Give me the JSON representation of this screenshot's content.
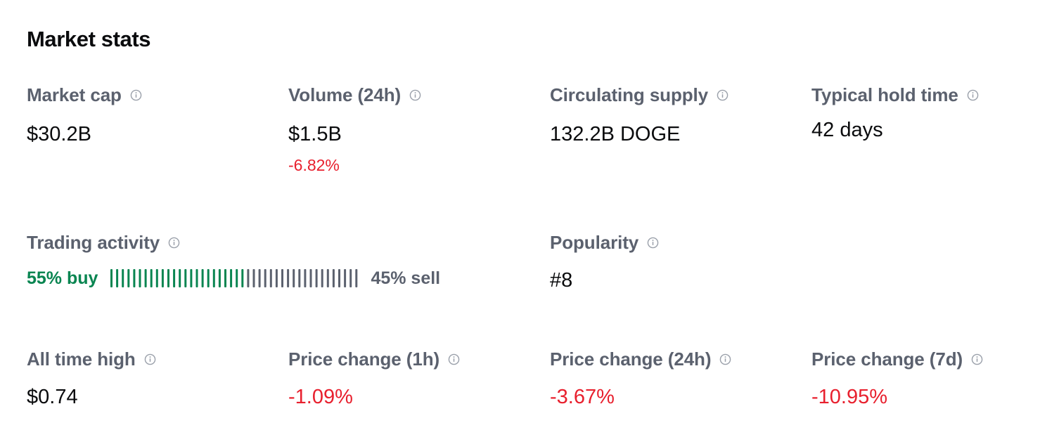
{
  "title": "Market stats",
  "stats": {
    "market_cap": {
      "label": "Market cap",
      "value": "$30.2B"
    },
    "volume": {
      "label": "Volume (24h)",
      "value": "$1.5B",
      "change": "-6.82%"
    },
    "circulating_supply": {
      "label": "Circulating supply",
      "value": "132.2B DOGE"
    },
    "hold_time": {
      "label": "Typical hold time",
      "value": "42 days"
    },
    "trading_activity": {
      "label": "Trading activity",
      "buy_label": "55% buy",
      "sell_label": "45% sell",
      "buy_fraction": 0.55
    },
    "popularity": {
      "label": "Popularity",
      "value": "#8"
    },
    "all_time_high": {
      "label": "All time high",
      "value": "$0.74"
    },
    "change_1h": {
      "label": "Price change (1h)",
      "value": "-1.09%"
    },
    "change_24h": {
      "label": "Price change (24h)",
      "value": "-3.67%"
    },
    "change_7d": {
      "label": "Price change (7d)",
      "value": "-10.95%"
    }
  },
  "colors": {
    "positive": "#098551",
    "negative": "#e8202e",
    "muted": "#5b616e"
  },
  "icons": {
    "info": "info-circle-icon"
  }
}
